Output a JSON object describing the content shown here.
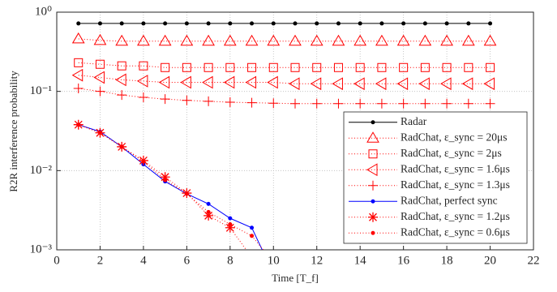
{
  "chart_data": {
    "type": "line",
    "xlabel": "Time [T_f]",
    "ylabel": "R2R interference probability",
    "xlim": [
      0,
      22
    ],
    "xticks": [
      0,
      2,
      4,
      6,
      8,
      10,
      12,
      14,
      16,
      18,
      20,
      22
    ],
    "ylim": [
      0.001,
      1
    ],
    "log_y": true,
    "grid": true,
    "legend": "lower right",
    "yticks": [
      {
        "value": 0.001,
        "label": "10⁻³"
      },
      {
        "value": 0.01,
        "label": "10⁻²"
      },
      {
        "value": 0.1,
        "label": "10⁻¹"
      },
      {
        "value": 1,
        "label": "10⁰"
      }
    ],
    "x": [
      1,
      2,
      3,
      4,
      5,
      6,
      7,
      8,
      9,
      10,
      11,
      12,
      13,
      14,
      15,
      16,
      17,
      18,
      19,
      20
    ],
    "series": [
      {
        "name": "Radar",
        "color": "#000000",
        "marker": "dot",
        "line": "solid",
        "values": [
          0.72,
          0.72,
          0.72,
          0.72,
          0.72,
          0.72,
          0.72,
          0.72,
          0.72,
          0.72,
          0.72,
          0.72,
          0.72,
          0.72,
          0.72,
          0.72,
          0.72,
          0.72,
          0.72,
          0.72
        ]
      },
      {
        "name": "RadChat, ε_sync = 20μs",
        "color": "#ff0000",
        "marker": "triangle-up",
        "line": "dotted",
        "values": [
          0.46,
          0.44,
          0.43,
          0.43,
          0.43,
          0.43,
          0.43,
          0.43,
          0.43,
          0.43,
          0.43,
          0.43,
          0.43,
          0.43,
          0.43,
          0.43,
          0.43,
          0.43,
          0.43,
          0.43
        ]
      },
      {
        "name": "RadChat, ε_sync = 2μs",
        "color": "#ff0000",
        "marker": "square",
        "line": "dotted",
        "values": [
          0.23,
          0.22,
          0.21,
          0.21,
          0.2,
          0.2,
          0.2,
          0.2,
          0.2,
          0.2,
          0.2,
          0.2,
          0.2,
          0.2,
          0.2,
          0.2,
          0.2,
          0.2,
          0.2,
          0.2
        ]
      },
      {
        "name": "RadChat, ε_sync = 1.6μs",
        "color": "#ff0000",
        "marker": "triangle-left",
        "line": "dotted",
        "values": [
          0.16,
          0.15,
          0.14,
          0.135,
          0.13,
          0.13,
          0.13,
          0.13,
          0.13,
          0.13,
          0.125,
          0.125,
          0.125,
          0.125,
          0.125,
          0.125,
          0.125,
          0.125,
          0.125,
          0.125
        ]
      },
      {
        "name": "RadChat, ε_sync = 1.3μs",
        "color": "#ff0000",
        "marker": "plus",
        "line": "dotted",
        "values": [
          0.109,
          0.1,
          0.09,
          0.084,
          0.08,
          0.077,
          0.075,
          0.073,
          0.072,
          0.071,
          0.07,
          0.07,
          0.07,
          0.07,
          0.07,
          0.07,
          0.07,
          0.07,
          0.07,
          0.07
        ]
      },
      {
        "name": "RadChat, perfect sync",
        "color": "#0000ff",
        "marker": "dot",
        "line": "solid",
        "values": [
          0.038,
          0.031,
          0.02,
          0.012,
          0.0073,
          0.0051,
          0.0038,
          0.0025,
          0.0019,
          0.0005,
          null,
          null,
          null,
          null,
          null,
          null,
          null,
          null,
          null,
          null
        ]
      },
      {
        "name": "RadChat, ε_sync = 1.2μs",
        "color": "#ff0000",
        "marker": "asterisk",
        "line": "dotted",
        "values": [
          0.038,
          0.03,
          0.02,
          0.0134,
          0.0083,
          0.0052,
          0.0027,
          0.0019,
          0.0008,
          null,
          null,
          null,
          null,
          null,
          null,
          null,
          null,
          null,
          null,
          null
        ]
      },
      {
        "name": "RadChat, ε_sync = 0.6μs",
        "color": "#ff0000",
        "marker": "dot",
        "line": "dotted",
        "values": [
          0.038,
          0.03,
          0.02,
          0.013,
          0.0076,
          0.0051,
          0.003,
          0.0021,
          0.0015,
          0.0007,
          null,
          null,
          null,
          null,
          null,
          null,
          null,
          null,
          null,
          null
        ]
      }
    ]
  }
}
